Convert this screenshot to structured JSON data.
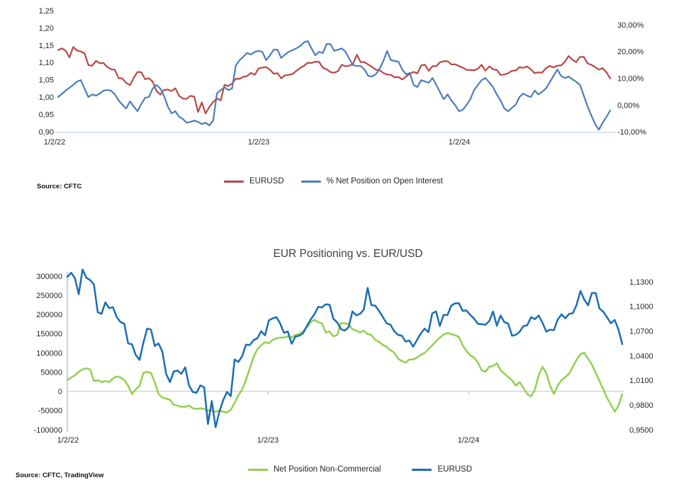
{
  "chart_data": [
    {
      "type": "line",
      "title": "",
      "source": "Source: CFTC",
      "x_tick_labels": [
        "1/2/22",
        "1/2/23",
        "1/2/24"
      ],
      "left_axis": {
        "tick_labels": [
          "1,25",
          "1,20",
          "1,15",
          "1,10",
          "1,05",
          "1,00",
          "0,95",
          "0,90"
        ],
        "range": [
          0.9,
          1.25
        ]
      },
      "right_axis": {
        "tick_labels": [
          "30,00%",
          "20,00%",
          "10,00%",
          "0,00%",
          "-10,00%"
        ],
        "range": [
          -10,
          30
        ]
      },
      "legend_position": "bottom",
      "series": [
        {
          "name": "EURUSD",
          "axis": "left",
          "color": "#bb4743",
          "values": [
            1.136,
            1.141,
            1.1343,
            1.1148,
            1.145,
            1.135,
            1.132,
            1.127,
            1.093,
            1.091,
            1.105,
            1.098,
            1.099,
            1.087,
            1.081,
            1.079,
            1.055,
            1.054,
            1.041,
            1.035,
            1.056,
            1.073,
            1.072,
            1.052,
            1.055,
            1.045,
            1.018,
            1.008,
            1.021,
            1.022,
            1.018,
            1.026,
            1.004,
            0.996,
            0.995,
            1.004,
            1.0016,
            0.957,
            0.985,
            0.953,
            0.972,
            0.986,
            0.996,
            0.991,
            1.0355,
            1.0325,
            1.0395,
            1.0535,
            1.053,
            1.059,
            1.0614,
            1.07,
            1.0648,
            1.083,
            1.0855,
            1.087,
            1.0794,
            1.0679,
            1.0695,
            1.0546,
            1.0633,
            1.0645,
            1.0672,
            1.076,
            1.084,
            1.0905,
            1.0995,
            1.0988,
            1.1027,
            1.102,
            1.085,
            1.0805,
            1.0725,
            1.0707,
            1.0749,
            1.0939,
            1.0893,
            1.091,
            1.0963,
            1.1226,
            1.1016,
            1.1011,
            1.0945,
            1.0873,
            1.0795,
            1.0779,
            1.07,
            1.0654,
            1.0645,
            1.0573,
            1.0585,
            1.051,
            1.0594,
            1.0672,
            1.0731,
            1.0687,
            1.0915,
            1.094,
            1.0763,
            1.0898,
            1.0895,
            1.101,
            1.1038,
            1.104,
            1.0946,
            1.0951,
            1.0897,
            1.0854,
            1.0788,
            1.0784,
            1.0777,
            1.0822,
            1.0938,
            1.0766,
            1.0889,
            1.0808,
            1.0791,
            1.0644,
            1.0656,
            1.0693,
            1.0762,
            1.0771,
            1.0869,
            1.0846,
            1.089,
            1.0803,
            1.0694,
            1.0716,
            1.0712,
            1.0838,
            1.0904,
            1.0856,
            1.091,
            1.0918,
            1.1023,
            1.1189,
            1.1083,
            1.1013,
            1.1163,
            1.1164,
            1.0975,
            1.0936,
            1.0868,
            1.0795,
            1.0837,
            1.0718,
            1.0542
          ]
        },
        {
          "name": "% Net Position on Open Interest",
          "axis": "right",
          "color": "#4a7ebb",
          "values": [
            3.0,
            4.2,
            5.4,
            6.5,
            7.5,
            8.8,
            9.3,
            6.2,
            3.0,
            4.0,
            3.5,
            4.3,
            5.4,
            5.6,
            5.4,
            4.0,
            1.7,
            0.1,
            -1.3,
            1.4,
            -0.5,
            -2.3,
            0.4,
            2.7,
            3.0,
            6.2,
            7.5,
            6.2,
            3.5,
            -0.5,
            -3.1,
            -2.3,
            -4.4,
            -5.2,
            -6.6,
            -6.3,
            -5.8,
            -6.3,
            -7.1,
            -6.6,
            -7.6,
            -5.8,
            4.3,
            5.6,
            6.7,
            5.6,
            6.2,
            14.9,
            16.8,
            18.1,
            19.5,
            18.9,
            19.9,
            20.2,
            19.9,
            16.8,
            18.5,
            20.7,
            20.7,
            17.6,
            18.9,
            19.9,
            20.5,
            21.2,
            22.1,
            23.4,
            23.9,
            21.2,
            18.6,
            19.9,
            19.4,
            22.8,
            22.8,
            20.2,
            20.7,
            21.2,
            19.9,
            17.3,
            14.9,
            14.6,
            14.6,
            13.3,
            10.9,
            10.7,
            11.5,
            13.5,
            16.5,
            20.2,
            16.8,
            16.5,
            16.2,
            13.3,
            11.5,
            12.0,
            7.5,
            6.7,
            9.3,
            8.8,
            8.3,
            10.1,
            7.5,
            4.8,
            2.2,
            4.0,
            1.7,
            0.0,
            -2.3,
            -1.8,
            0.0,
            2.2,
            5.6,
            7.5,
            9.3,
            10.1,
            8.5,
            6.7,
            4.0,
            1.7,
            -1.3,
            -2.3,
            -1.0,
            0.1,
            3.0,
            4.3,
            3.5,
            3.0,
            5.4,
            4.0,
            5.0,
            6.2,
            8.5,
            10.9,
            13.3,
            10.9,
            10.1,
            10.7,
            9.6,
            8.7,
            7.5,
            3.5,
            -0.5,
            -3.9,
            -7.1,
            -9.2,
            -6.6,
            -4.4,
            -2.0
          ]
        }
      ]
    },
    {
      "type": "line",
      "title": "EUR Positioning vs. EUR/USD",
      "source": "Source: CFTC, TradingView",
      "x_tick_labels": [
        "1/2/22",
        "1/2/23",
        "1/2/24"
      ],
      "left_axis": {
        "tick_labels": [
          "300000",
          "250000",
          "200000",
          "150000",
          "100000",
          "50000",
          "0",
          "-50000",
          "-100000"
        ],
        "range": [
          -100000,
          300000
        ]
      },
      "right_axis": {
        "tick_labels": [
          "1,1300",
          "1,1000",
          "1,0700",
          "1,0400",
          "1,0100",
          "0,9800",
          "0,9500"
        ],
        "range": [
          0.95,
          1.13
        ]
      },
      "legend_position": "bottom",
      "series": [
        {
          "name": "Net Position Non-Commercial",
          "axis": "left",
          "color": "#92d050",
          "values": [
            30000,
            36000,
            42000,
            51000,
            57000,
            60000,
            57000,
            27000,
            29000,
            24000,
            27000,
            24000,
            33000,
            39000,
            36000,
            29000,
            15000,
            -7000,
            5000,
            15000,
            48000,
            51000,
            48000,
            24000,
            -7000,
            -16000,
            -19000,
            -22000,
            -35000,
            -37000,
            -40000,
            -40000,
            -37000,
            -44000,
            -46000,
            -44000,
            -46000,
            -50000,
            -50000,
            -53000,
            -50000,
            -53000,
            -55000,
            -48000,
            -30000,
            -10000,
            5000,
            30000,
            60000,
            90000,
            110000,
            120000,
            128000,
            125000,
            134000,
            138000,
            140000,
            140000,
            143000,
            140000,
            147000,
            149000,
            156000,
            167000,
            180000,
            186000,
            180000,
            177000,
            153000,
            156000,
            143000,
            147000,
            178000,
            177000,
            175000,
            162000,
            158000,
            153000,
            158000,
            149000,
            147000,
            134000,
            129000,
            121000,
            116000,
            107000,
            101000,
            85000,
            79000,
            75000,
            83000,
            83000,
            88000,
            95000,
            100000,
            110000,
            120000,
            130000,
            140000,
            148000,
            152000,
            149000,
            146000,
            142000,
            120000,
            105000,
            94000,
            88000,
            75000,
            55000,
            51000,
            64000,
            66000,
            73000,
            55000,
            46000,
            37000,
            29000,
            15000,
            24000,
            9000,
            -7000,
            -13000,
            5000,
            42000,
            64000,
            48000,
            15000,
            -7000,
            15000,
            29000,
            37000,
            46000,
            64000,
            83000,
            97000,
            101000,
            85000,
            70000,
            48000,
            27000,
            5000,
            -17000,
            -35000,
            -53000,
            -37000,
            -7000
          ]
        },
        {
          "name": "EURUSD",
          "axis": "right",
          "color": "#1b6db3",
          "values": [
            1.136,
            1.141,
            1.1343,
            1.1148,
            1.145,
            1.135,
            1.132,
            1.127,
            1.093,
            1.091,
            1.105,
            1.098,
            1.099,
            1.087,
            1.081,
            1.079,
            1.055,
            1.054,
            1.041,
            1.035,
            1.056,
            1.073,
            1.072,
            1.052,
            1.055,
            1.045,
            1.018,
            1.008,
            1.021,
            1.022,
            1.018,
            1.026,
            1.004,
            0.996,
            0.995,
            1.004,
            1.0016,
            0.957,
            0.985,
            0.953,
            0.972,
            0.986,
            0.996,
            0.991,
            1.0355,
            1.0325,
            1.0395,
            1.0535,
            1.053,
            1.059,
            1.0614,
            1.07,
            1.0648,
            1.083,
            1.0855,
            1.087,
            1.0794,
            1.0679,
            1.0695,
            1.0546,
            1.0633,
            1.0645,
            1.0672,
            1.076,
            1.084,
            1.0905,
            1.0995,
            1.0988,
            1.1027,
            1.102,
            1.085,
            1.0805,
            1.0725,
            1.0707,
            1.0749,
            1.0939,
            1.0893,
            1.091,
            1.0963,
            1.1226,
            1.1016,
            1.1011,
            1.0945,
            1.0873,
            1.0795,
            1.0779,
            1.07,
            1.0654,
            1.0645,
            1.0573,
            1.0585,
            1.051,
            1.0594,
            1.0672,
            1.0731,
            1.0687,
            1.0915,
            1.094,
            1.0763,
            1.0898,
            1.0895,
            1.101,
            1.1038,
            1.104,
            1.0946,
            1.0951,
            1.0897,
            1.0854,
            1.0788,
            1.0784,
            1.0777,
            1.0822,
            1.0938,
            1.0766,
            1.0889,
            1.0808,
            1.0791,
            1.0644,
            1.0656,
            1.0693,
            1.0762,
            1.0771,
            1.0869,
            1.0846,
            1.089,
            1.0803,
            1.0694,
            1.0716,
            1.0712,
            1.0838,
            1.0904,
            1.0856,
            1.091,
            1.0918,
            1.1023,
            1.1189,
            1.1083,
            1.1013,
            1.1163,
            1.1164,
            1.0975,
            1.0936,
            1.0868,
            1.0795,
            1.0837,
            1.0718,
            1.0542
          ]
        }
      ]
    }
  ]
}
